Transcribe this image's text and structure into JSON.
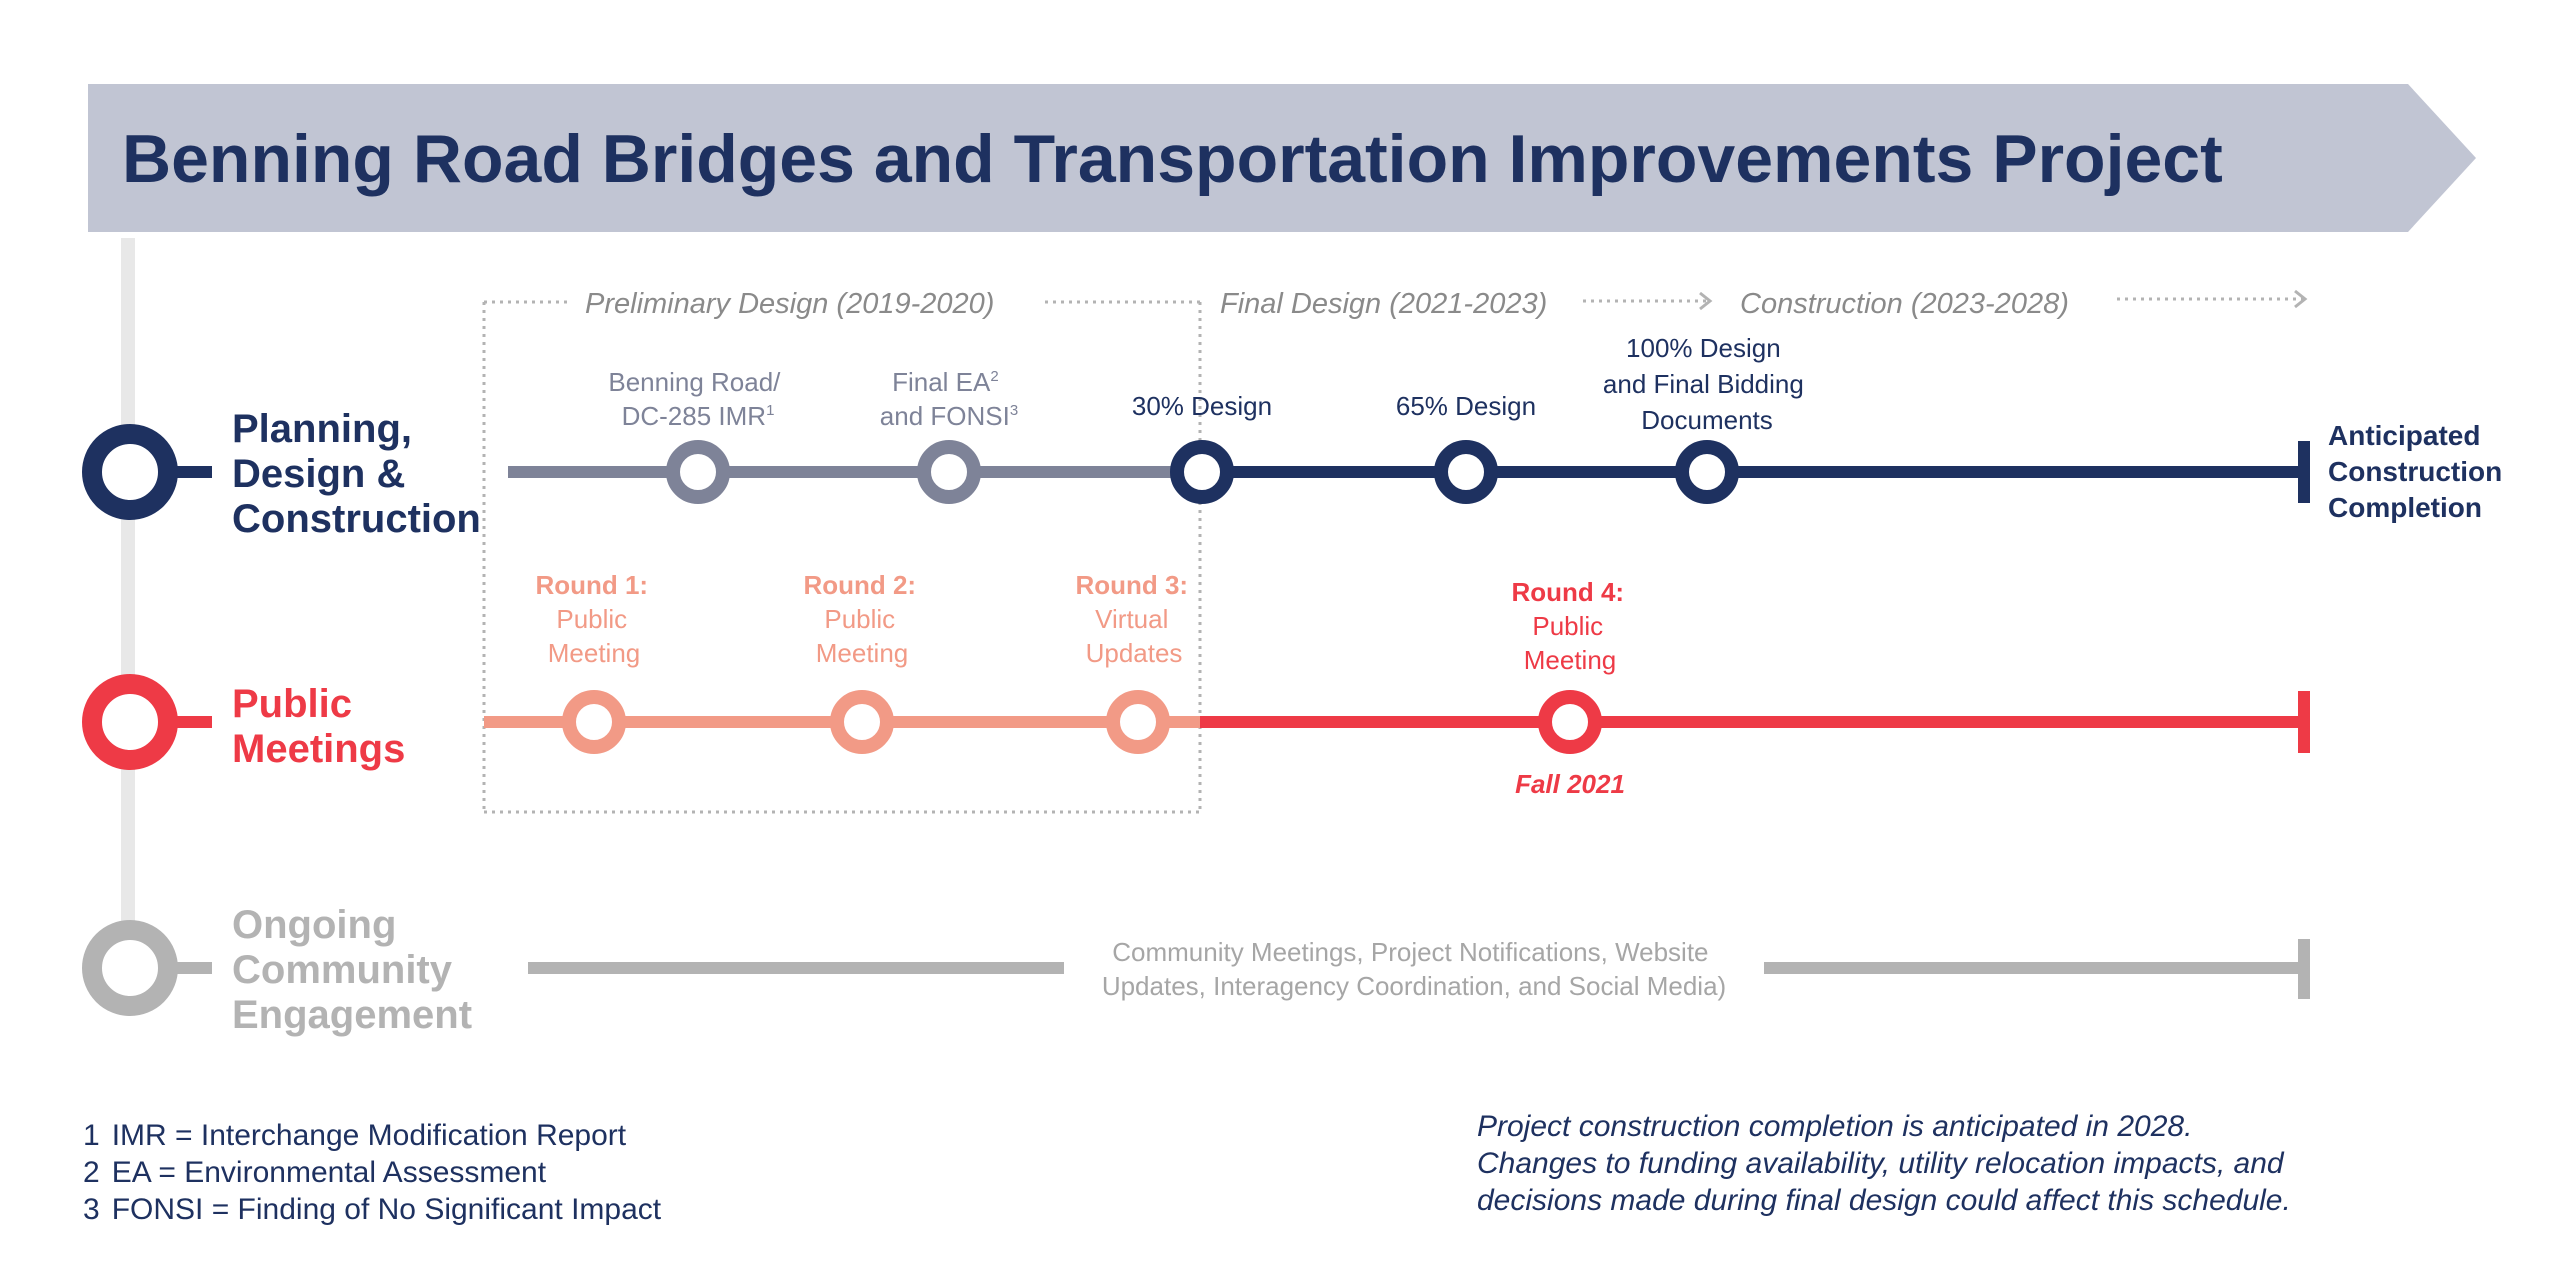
{
  "title": "Benning Road Bridges and Transportation Improvements Project",
  "colors": {
    "banner": "#c1c5d3",
    "navy": "#1e3160",
    "slate": "#7e8398",
    "salmon": "#f29a86",
    "red": "#ee3a46",
    "gray": "#b3b3b3",
    "spine": "#e8e8e8"
  },
  "phases": [
    {
      "label": "Preliminary Design (2019-2020)"
    },
    {
      "label": "Final Design (2021-2023)"
    },
    {
      "label": "Construction (2023-2028)"
    }
  ],
  "rows": {
    "planning": {
      "label_lines": [
        "Planning,",
        "Design &",
        "Construction"
      ],
      "milestones": [
        {
          "lines": [
            "Benning Road/",
            "DC-285 IMR"
          ],
          "footnote": "1",
          "stage": "preliminary"
        },
        {
          "lines": [
            "Final EA",
            "and FONSI"
          ],
          "footnotes": [
            "2",
            "3"
          ],
          "stage": "preliminary"
        },
        {
          "lines": [
            "30% Design"
          ],
          "stage": "final"
        },
        {
          "lines": [
            "65% Design"
          ],
          "stage": "final"
        },
        {
          "lines": [
            "100% Design",
            "and Final Bidding",
            "Documents"
          ],
          "stage": "final"
        }
      ],
      "end_label_lines": [
        "Anticipated",
        "Construction",
        "Completion"
      ]
    },
    "public_meetings": {
      "label_lines": [
        "Public",
        "Meetings"
      ],
      "meetings": [
        {
          "heading": "Round 1:",
          "lines": [
            "Public",
            "Meeting"
          ],
          "stage": "preliminary"
        },
        {
          "heading": "Round 2:",
          "lines": [
            "Public",
            "Meeting"
          ],
          "stage": "preliminary"
        },
        {
          "heading": "Round 3:",
          "lines": [
            "Virtual",
            "Updates"
          ],
          "stage": "preliminary"
        },
        {
          "heading": "Round 4:",
          "lines": [
            "Public",
            "Meeting"
          ],
          "stage": "final",
          "date": "Fall 2021"
        }
      ]
    },
    "community": {
      "label_lines": [
        "Ongoing",
        "Community",
        "Engagement"
      ],
      "description_lines": [
        "Community Meetings, Project Notifications, Website",
        "Updates, Interagency Coordination, and Social Media)"
      ]
    }
  },
  "footnotes": [
    {
      "num": "1",
      "text": "IMR = Interchange Modification Report"
    },
    {
      "num": "2",
      "text": "EA = Environmental Assessment"
    },
    {
      "num": "3",
      "text": "FONSI = Finding of No Significant Impact"
    }
  ],
  "note_lines": [
    "Project construction completion is anticipated in 2028.",
    "Changes to funding availability, utility relocation impacts, and",
    "decisions made during final design could affect this schedule."
  ]
}
